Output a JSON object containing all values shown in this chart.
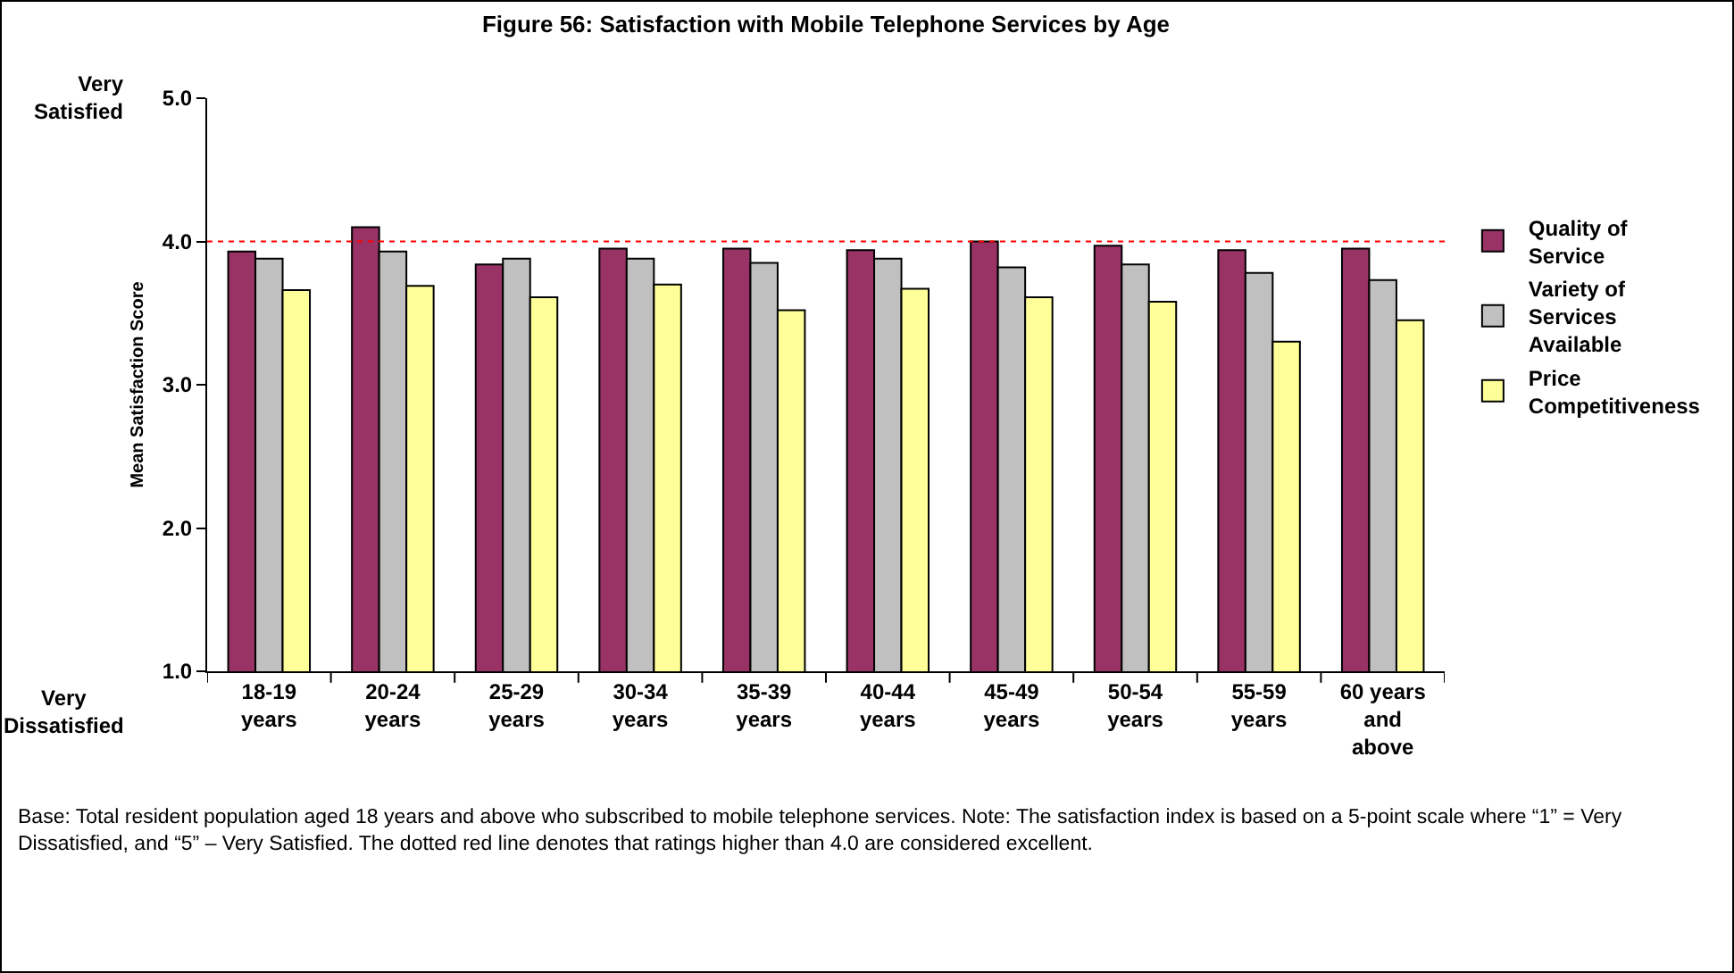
{
  "chart_data": {
    "type": "bar",
    "title": "Figure 56: Satisfaction with Mobile Telephone Services by Age",
    "ylabel": "Mean Satisfaction Score",
    "categories": [
      "18-19 years",
      "20-24 years",
      "25-29 years",
      "30-34 years",
      "35-39 years",
      "40-44 years",
      "45-49 years",
      "50-54 years",
      "55-59 years",
      "60 years and above"
    ],
    "series": [
      {
        "name": "Quality of Service",
        "color": "#993366",
        "values": [
          3.93,
          4.1,
          3.84,
          3.95,
          3.95,
          3.94,
          4.0,
          3.97,
          3.94,
          3.95
        ]
      },
      {
        "name": "Variety of Services Available",
        "color": "#c0c0c0",
        "values": [
          3.88,
          3.93,
          3.88,
          3.88,
          3.85,
          3.88,
          3.82,
          3.84,
          3.78,
          3.73
        ]
      },
      {
        "name": "Price Competitiveness",
        "color": "#ffff99",
        "values": [
          3.66,
          3.69,
          3.61,
          3.7,
          3.52,
          3.67,
          3.61,
          3.58,
          3.3,
          3.45
        ]
      }
    ],
    "ylim": [
      1,
      5
    ],
    "yticks": [
      {
        "value": 1,
        "label": "1.0"
      },
      {
        "value": 2,
        "label": "2.0"
      },
      {
        "value": 3,
        "label": "3.0"
      },
      {
        "value": 4,
        "label": "4.0"
      },
      {
        "value": 5,
        "label": "5.0"
      }
    ],
    "grid": false,
    "legend": "right",
    "ref_lines": [
      {
        "axis": "y",
        "value": 4,
        "color": "#ff0000",
        "line_style": "dotted"
      }
    ],
    "annotations": [
      "Very Satisfied",
      "Very Dissatisfied",
      "Base: Total resident population aged 18 years and above who subscribed to mobile telephone services.  Note: The satisfaction index is based on a 5-point scale where “1” = Very Dissatisfied, and “5” – Very Satisfied.  The dotted red line denotes that ratings higher than 4.0 are considered excellent."
    ]
  }
}
